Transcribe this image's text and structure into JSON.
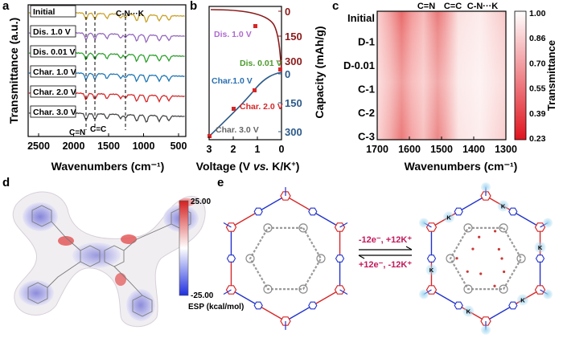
{
  "panel_a": {
    "letter": "a",
    "ylabel": "Transmittance (a.u.)",
    "xlabel": "Wavenumbers (cm⁻¹)",
    "xticks": [
      "2500",
      "2000",
      "1500",
      "1000",
      "500"
    ],
    "peak_labels": {
      "cn_k": "C-N···K",
      "c_eq_n": "C=N",
      "c_eq_c": "C=C"
    },
    "spectra": [
      {
        "label": "Initial",
        "color": "#c9a227"
      },
      {
        "label": "Dis. 1.0 V",
        "color": "#9467bd"
      },
      {
        "label": "Dis. 0.01 V",
        "color": "#2ca02c"
      },
      {
        "label": "Char. 1.0 V",
        "color": "#1f77b4"
      },
      {
        "label": "Char. 2.0 V",
        "color": "#d62728"
      },
      {
        "label": "Char. 3.0 V",
        "color": "#444444"
      }
    ]
  },
  "panel_b": {
    "letter": "b",
    "xlabel_pre": "Voltage (V ",
    "xlabel_vs": "vs.",
    "xlabel_post": " K/K",
    "xlabel_sup": "+",
    "xlabel_end": ")",
    "ylabel": "Capacity (mAh/g)",
    "xticks": [
      "3",
      "2",
      "1",
      "0"
    ],
    "top_ticks": [
      "0",
      "150",
      "300"
    ],
    "bottom_ticks": [
      "0",
      "150",
      "300"
    ],
    "labels": {
      "dis1": "Dis. 1.0 V",
      "dis001": "Dis. 0.01 V",
      "char1": "Char.1.0 V",
      "char2": "Char. 2.0 V",
      "char3": "Char. 3.0 V"
    },
    "colors": {
      "discharge": "#8b1a1a",
      "charge": "#2c5a8a"
    }
  },
  "panel_c": {
    "letter": "c",
    "col_labels": [
      "C=N",
      "C=C",
      "C-N···K"
    ],
    "row_labels": [
      "Initial",
      "D-1",
      "D-0.01",
      "C-1",
      "C-2",
      "C-3"
    ],
    "xticks": [
      "1700",
      "1600",
      "1500",
      "1400",
      "1300"
    ],
    "xlabel": "Wavenumbers (cm⁻¹)",
    "colorbar_label": "Transmittance",
    "colorbar_ticks": [
      "1.00",
      "0.86",
      "0.70",
      "0.55",
      "0.39",
      "0.23"
    ]
  },
  "panel_d": {
    "letter": "d",
    "scale_max": "25.00",
    "scale_min": "-25.00",
    "scale_label": "ESP (kcal/mol)"
  },
  "panel_e": {
    "letter": "e",
    "forward": "-12e⁻, +12K⁺",
    "reverse": "+12e⁻, -12K⁺",
    "k_label": "K"
  }
}
